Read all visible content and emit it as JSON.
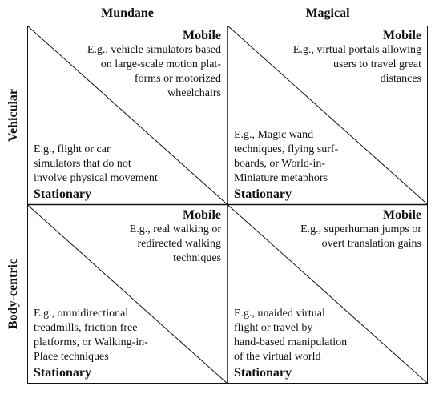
{
  "columns": [
    "Mundane",
    "Magical"
  ],
  "rows": [
    "Vehicular",
    "Body-centric"
  ],
  "labels": {
    "mobile": "Mobile",
    "stationary": "Stationary"
  },
  "cells": [
    [
      {
        "mobile_text": "E.g., vehicle simulators based\non large-scale motion plat-\nforms or motorized\nwheelchairs",
        "stationary_text": "E.g., flight or car\nsimulators that do not\ninvolve physical movement"
      },
      {
        "mobile_text": "E.g., virtual portals allowing\nusers to travel great\ndistances",
        "stationary_text": "E.g., Magic wand\ntechniques, flying surf-\nboards, or World-in-\nMiniature metaphors"
      }
    ],
    [
      {
        "mobile_text": "E.g., real walking or\nredirected walking\ntechniques",
        "stationary_text": "E.g., omnidirectional\ntreadmills, friction free\nplatforms, or Walking-in-\nPlace techniques"
      },
      {
        "mobile_text": "E.g., superhuman jumps or\novert translation gains",
        "stationary_text": "E.g., unaided virtual\nflight or travel by\nhand-based manipulation\nof the virtual world"
      }
    ]
  ]
}
